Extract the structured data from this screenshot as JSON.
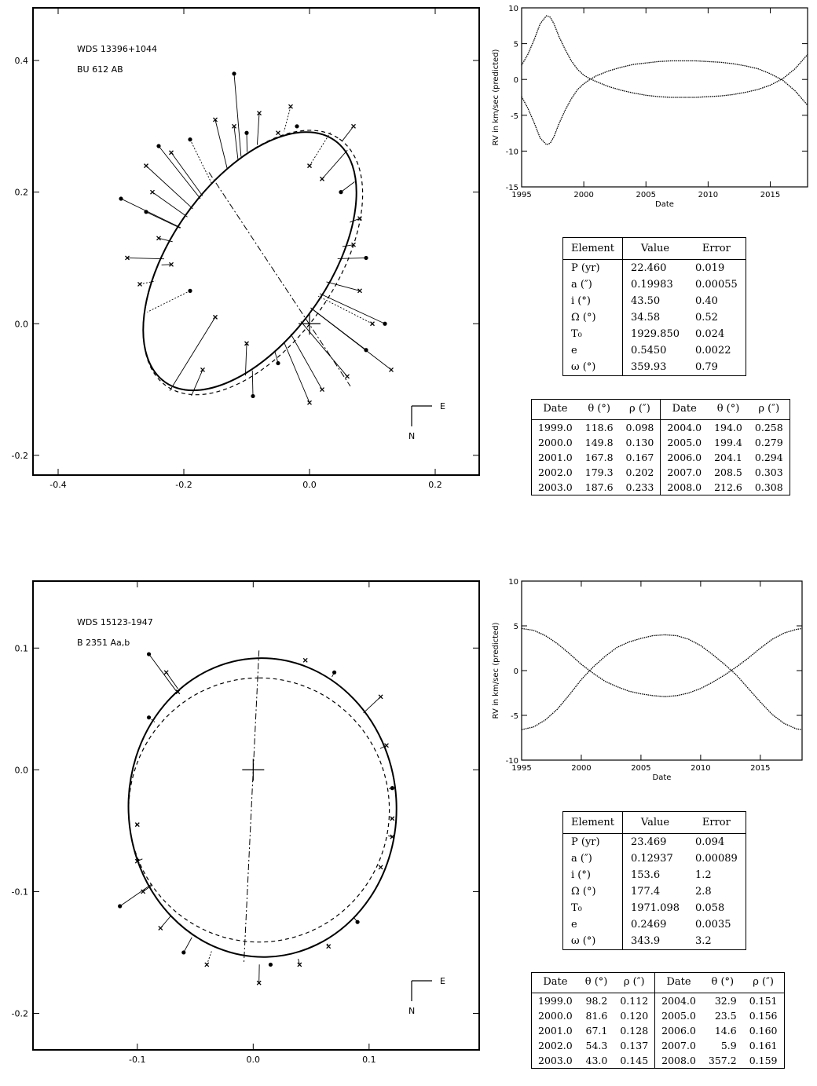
{
  "chart_data": [
    {
      "type": "scatter",
      "title": "WDS 13396+1044",
      "subtitle": "BU  612 AB",
      "xlim": [
        -0.44,
        0.27
      ],
      "ylim": [
        -0.23,
        0.48
      ],
      "xticks": [
        -0.4,
        -0.2,
        0.0,
        0.2
      ],
      "xtick_labels": [
        "-0.4",
        "-0.2",
        "0.0",
        "0.2"
      ],
      "yticks": [
        -0.2,
        0.0,
        0.2,
        0.4
      ],
      "ytick_labels": [
        "-0.2",
        "0.0",
        "0.2",
        "0.4"
      ],
      "compass": {
        "e": "E",
        "n": "N"
      },
      "orbit": {
        "cx": -0.095,
        "cy": 0.095,
        "a": 0.235,
        "b": 0.12,
        "angle_deg": 55
      },
      "dashed_orbit": {
        "cx": -0.09,
        "cy": 0.093,
        "a": 0.24,
        "b": 0.125,
        "angle_deg": 55
      },
      "line_of_nodes": [
        [
          -0.16,
          0.23
        ],
        [
          0.065,
          -0.095
        ]
      ],
      "observations": [
        [
          -0.24,
          0.27
        ],
        [
          -0.26,
          0.24
        ],
        [
          -0.22,
          0.26
        ],
        [
          -0.19,
          0.28
        ],
        [
          -0.15,
          0.31
        ],
        [
          -0.12,
          0.3
        ],
        [
          -0.1,
          0.29
        ],
        [
          -0.08,
          0.32
        ],
        [
          -0.05,
          0.29
        ],
        [
          -0.02,
          0.3
        ],
        [
          0.0,
          0.24
        ],
        [
          0.02,
          0.22
        ],
        [
          0.05,
          0.2
        ],
        [
          0.08,
          0.16
        ],
        [
          0.07,
          0.12
        ],
        [
          0.09,
          0.1
        ],
        [
          0.08,
          0.05
        ],
        [
          0.1,
          0.0
        ],
        [
          0.09,
          -0.04
        ],
        [
          0.06,
          -0.08
        ],
        [
          0.02,
          -0.1
        ],
        [
          -0.05,
          -0.06
        ],
        [
          -0.1,
          -0.03
        ],
        [
          -0.15,
          0.01
        ],
        [
          -0.19,
          0.05
        ],
        [
          -0.22,
          0.09
        ],
        [
          -0.24,
          0.13
        ],
        [
          -0.26,
          0.17
        ],
        [
          -0.25,
          0.2
        ],
        [
          -0.29,
          0.1
        ],
        [
          -0.3,
          0.19
        ],
        [
          -0.27,
          0.06
        ],
        [
          -0.17,
          -0.07
        ],
        [
          -0.09,
          -0.11
        ],
        [
          0.0,
          -0.12
        ],
        [
          0.13,
          -0.07
        ],
        [
          0.12,
          0.0
        ],
        [
          0.07,
          0.3
        ],
        [
          -0.03,
          0.33
        ],
        [
          -0.12,
          0.38
        ]
      ]
    },
    {
      "type": "scatter",
      "title": "WDS 15123-1947",
      "subtitle": "B 2351 Aa,b",
      "xlim": [
        -0.19,
        0.195
      ],
      "ylim": [
        -0.23,
        0.155
      ],
      "xticks": [
        -0.1,
        0.0,
        0.1
      ],
      "xtick_labels": [
        "-0.1",
        "0.0",
        "0.1"
      ],
      "yticks": [
        -0.2,
        -0.1,
        0.0,
        0.1
      ],
      "ytick_labels": [
        "-0.2",
        "-0.1",
        "0.0",
        "0.1"
      ],
      "compass": {
        "e": "E",
        "n": "N"
      },
      "orbit": {
        "cx": 0.008,
        "cy": -0.031,
        "a": 0.129,
        "b": 0.11,
        "angle_deg": 92
      },
      "dashed_orbit": {
        "cx": 0.005,
        "cy": -0.033,
        "a": 0.114,
        "b": 0.107,
        "angle_deg": 90
      },
      "line_of_nodes": [
        [
          0.005,
          0.098
        ],
        [
          -0.008,
          -0.158
        ]
      ],
      "observations": [
        [
          -0.09,
          0.095
        ],
        [
          -0.075,
          0.08
        ],
        [
          -0.065,
          0.064
        ],
        [
          -0.09,
          0.043
        ],
        [
          -0.1,
          -0.045
        ],
        [
          -0.1,
          -0.075
        ],
        [
          -0.115,
          -0.112
        ],
        [
          -0.095,
          -0.1
        ],
        [
          -0.08,
          -0.13
        ],
        [
          -0.06,
          -0.15
        ],
        [
          -0.04,
          -0.16
        ],
        [
          0.005,
          -0.175
        ],
        [
          0.015,
          -0.16
        ],
        [
          0.04,
          -0.16
        ],
        [
          0.065,
          -0.145
        ],
        [
          0.09,
          -0.125
        ],
        [
          0.11,
          -0.08
        ],
        [
          0.12,
          -0.04
        ],
        [
          0.12,
          -0.015
        ],
        [
          0.115,
          0.02
        ],
        [
          0.11,
          0.06
        ],
        [
          0.07,
          0.08
        ],
        [
          0.045,
          0.09
        ],
        [
          0.12,
          -0.055
        ]
      ]
    },
    {
      "type": "line",
      "xlabel": "Date",
      "ylabel": "RV in km/sec (predicted)",
      "xlim": [
        1995,
        2018
      ],
      "ylim": [
        -15,
        10
      ],
      "xticks": [
        1995,
        2000,
        2005,
        2010,
        2015
      ],
      "yticks": [
        -15,
        -10,
        -5,
        0,
        5,
        10
      ],
      "series": [
        {
          "x": [
            1995.0,
            1995.5,
            1996.0,
            1996.5,
            1997.0,
            1997.3,
            1997.6,
            1998.0,
            1998.5,
            1999.0,
            1999.5,
            2000.0,
            2000.5,
            2001.0,
            2002.0,
            2003.0,
            2004.0,
            2005.0,
            2006.0,
            2007.0,
            2008.0,
            2009.0,
            2010.0,
            2011.0,
            2012.0,
            2013.0,
            2014.0,
            2015.0,
            2016.0,
            2017.0,
            2018.0
          ],
          "values": [
            2.0,
            3.5,
            5.5,
            7.8,
            8.9,
            8.7,
            7.8,
            6.0,
            4.2,
            2.6,
            1.4,
            0.6,
            0.1,
            -0.3,
            -1.0,
            -1.5,
            -1.9,
            -2.2,
            -2.4,
            -2.5,
            -2.5,
            -2.5,
            -2.4,
            -2.3,
            -2.1,
            -1.8,
            -1.4,
            -0.8,
            0.1,
            1.5,
            3.5
          ]
        },
        {
          "x": [
            1995.0,
            1995.5,
            1996.0,
            1996.5,
            1997.0,
            1997.3,
            1997.6,
            1998.0,
            1998.5,
            1999.0,
            1999.5,
            2000.0,
            2000.5,
            2001.0,
            2002.0,
            2003.0,
            2004.0,
            2005.0,
            2006.0,
            2007.0,
            2008.0,
            2009.0,
            2010.0,
            2011.0,
            2012.0,
            2013.0,
            2014.0,
            2015.0,
            2016.0,
            2017.0,
            2018.0
          ],
          "values": [
            -2.4,
            -4.0,
            -6.0,
            -8.2,
            -9.1,
            -8.9,
            -8.0,
            -6.2,
            -4.3,
            -2.7,
            -1.4,
            -0.6,
            0.0,
            0.5,
            1.2,
            1.7,
            2.1,
            2.3,
            2.5,
            2.6,
            2.6,
            2.6,
            2.5,
            2.4,
            2.2,
            1.9,
            1.5,
            0.8,
            -0.1,
            -1.6,
            -3.6
          ]
        }
      ]
    },
    {
      "type": "line",
      "xlabel": "Date",
      "ylabel": "RV in km/sec (predicted)",
      "xlim": [
        1995,
        2018.5
      ],
      "ylim": [
        -10,
        10
      ],
      "xticks": [
        1995,
        2000,
        2005,
        2010,
        2015
      ],
      "yticks": [
        -10,
        -5,
        0,
        5,
        10
      ],
      "series": [
        {
          "x": [
            1995,
            1996,
            1997,
            1998,
            1999,
            2000,
            2001,
            2002,
            2003,
            2004,
            2005,
            2006,
            2007,
            2008,
            2009,
            2010,
            2011,
            2012,
            2013,
            2014,
            2015,
            2016,
            2017,
            2018,
            2018.5
          ],
          "values": [
            4.7,
            4.5,
            3.9,
            3.0,
            1.9,
            0.7,
            -0.3,
            -1.2,
            -1.8,
            -2.3,
            -2.6,
            -2.8,
            -2.9,
            -2.8,
            -2.5,
            -2.0,
            -1.3,
            -0.5,
            0.4,
            1.4,
            2.5,
            3.5,
            4.2,
            4.6,
            4.7
          ]
        },
        {
          "x": [
            1995,
            1996,
            1997,
            1998,
            1999,
            2000,
            2001,
            2002,
            2003,
            2004,
            2005,
            2006,
            2007,
            2008,
            2009,
            2010,
            2011,
            2012,
            2013,
            2014,
            2015,
            2016,
            2017,
            2018,
            2018.5
          ],
          "values": [
            -6.6,
            -6.3,
            -5.5,
            -4.3,
            -2.7,
            -1.0,
            0.4,
            1.6,
            2.6,
            3.2,
            3.6,
            3.9,
            4.0,
            3.9,
            3.5,
            2.8,
            1.8,
            0.7,
            -0.5,
            -2.0,
            -3.5,
            -4.9,
            -5.9,
            -6.5,
            -6.6
          ]
        }
      ]
    }
  ],
  "elements_tables": [
    {
      "headers": [
        "Element",
        "Value",
        "Error"
      ],
      "rows": [
        [
          "P (yr)",
          "22.460",
          "0.019"
        ],
        [
          "a (″)",
          "0.19983",
          "0.00055"
        ],
        [
          "i (°)",
          "43.50",
          "0.40"
        ],
        [
          "Ω (°)",
          "34.58",
          "0.52"
        ],
        [
          "T₀",
          "1929.850",
          "0.024"
        ],
        [
          "e",
          "0.5450",
          "0.0022"
        ],
        [
          "ω (°)",
          "359.93",
          "0.79"
        ]
      ]
    },
    {
      "headers": [
        "Element",
        "Value",
        "Error"
      ],
      "rows": [
        [
          "P (yr)",
          "23.469",
          "0.094"
        ],
        [
          "a (″)",
          "0.12937",
          "0.00089"
        ],
        [
          "i (°)",
          "153.6",
          "1.2"
        ],
        [
          "Ω (°)",
          "177.4",
          "2.8"
        ],
        [
          "T₀",
          "1971.098",
          "0.058"
        ],
        [
          "e",
          "0.2469",
          "0.0035"
        ],
        [
          "ω (°)",
          "343.9",
          "3.2"
        ]
      ]
    }
  ],
  "ephemeris_tables": [
    {
      "headers": [
        "Date",
        "θ (°)",
        "ρ (″)",
        "Date",
        "θ (°)",
        "ρ (″)"
      ],
      "rows": [
        [
          "1999.0",
          "118.6",
          "0.098",
          "2004.0",
          "194.0",
          "0.258"
        ],
        [
          "2000.0",
          "149.8",
          "0.130",
          "2005.0",
          "199.4",
          "0.279"
        ],
        [
          "2001.0",
          "167.8",
          "0.167",
          "2006.0",
          "204.1",
          "0.294"
        ],
        [
          "2002.0",
          "179.3",
          "0.202",
          "2007.0",
          "208.5",
          "0.303"
        ],
        [
          "2003.0",
          "187.6",
          "0.233",
          "2008.0",
          "212.6",
          "0.308"
        ]
      ]
    },
    {
      "headers": [
        "Date",
        "θ (°)",
        "ρ (″)",
        "Date",
        "θ (°)",
        "ρ (″)"
      ],
      "rows": [
        [
          "1999.0",
          "98.2",
          "0.112",
          "2004.0",
          "32.9",
          "0.151"
        ],
        [
          "2000.0",
          "81.6",
          "0.120",
          "2005.0",
          "23.5",
          "0.156"
        ],
        [
          "2001.0",
          "67.1",
          "0.128",
          "2006.0",
          "14.6",
          "0.160"
        ],
        [
          "2002.0",
          "54.3",
          "0.137",
          "2007.0",
          "5.9",
          "0.161"
        ],
        [
          "2003.0",
          "43.0",
          "0.145",
          "2008.0",
          "357.2",
          "0.159"
        ]
      ]
    }
  ]
}
